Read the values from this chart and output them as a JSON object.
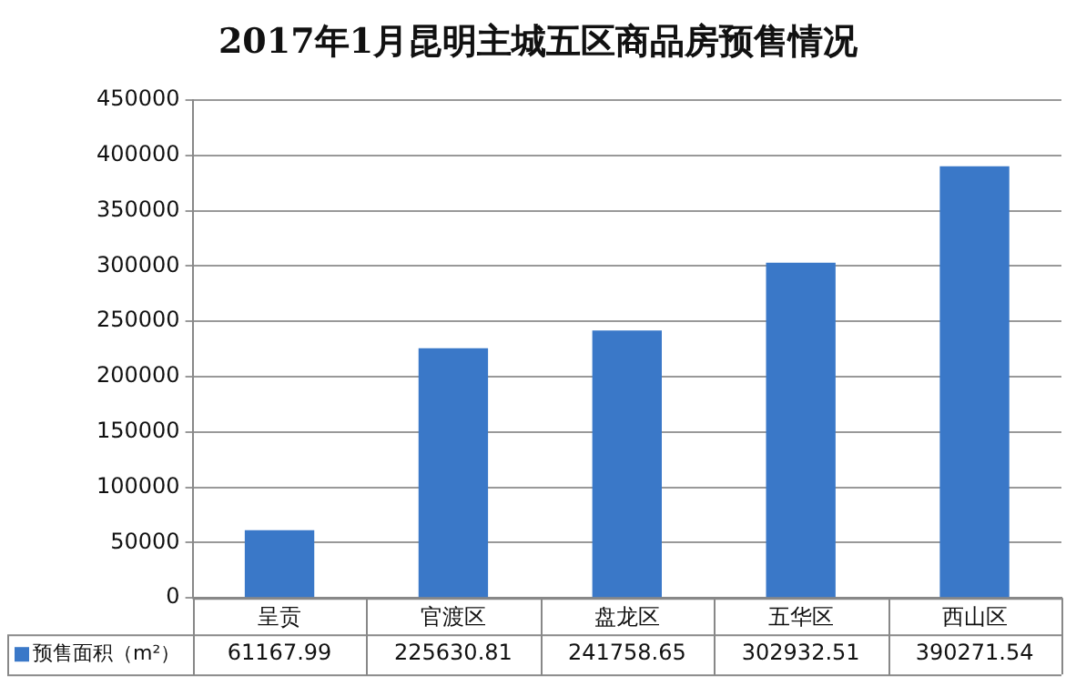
{
  "chart_data": {
    "type": "bar",
    "title": "2017年1月昆明主城五区商品房预售情况",
    "categories": [
      "呈贡",
      "官渡区",
      "盘龙区",
      "五华区",
      "西山区"
    ],
    "series": [
      {
        "name": "预售面积（m²）",
        "color": "#3a78c8",
        "values": [
          61167.99,
          225630.81,
          241758.65,
          302932.51,
          390271.54
        ]
      }
    ],
    "ylim": [
      0,
      450000
    ],
    "yticks": [
      0,
      50000,
      100000,
      150000,
      200000,
      250000,
      300000,
      350000,
      400000,
      450000
    ],
    "grid": "y",
    "legend": "bottom",
    "data_labels": true
  }
}
